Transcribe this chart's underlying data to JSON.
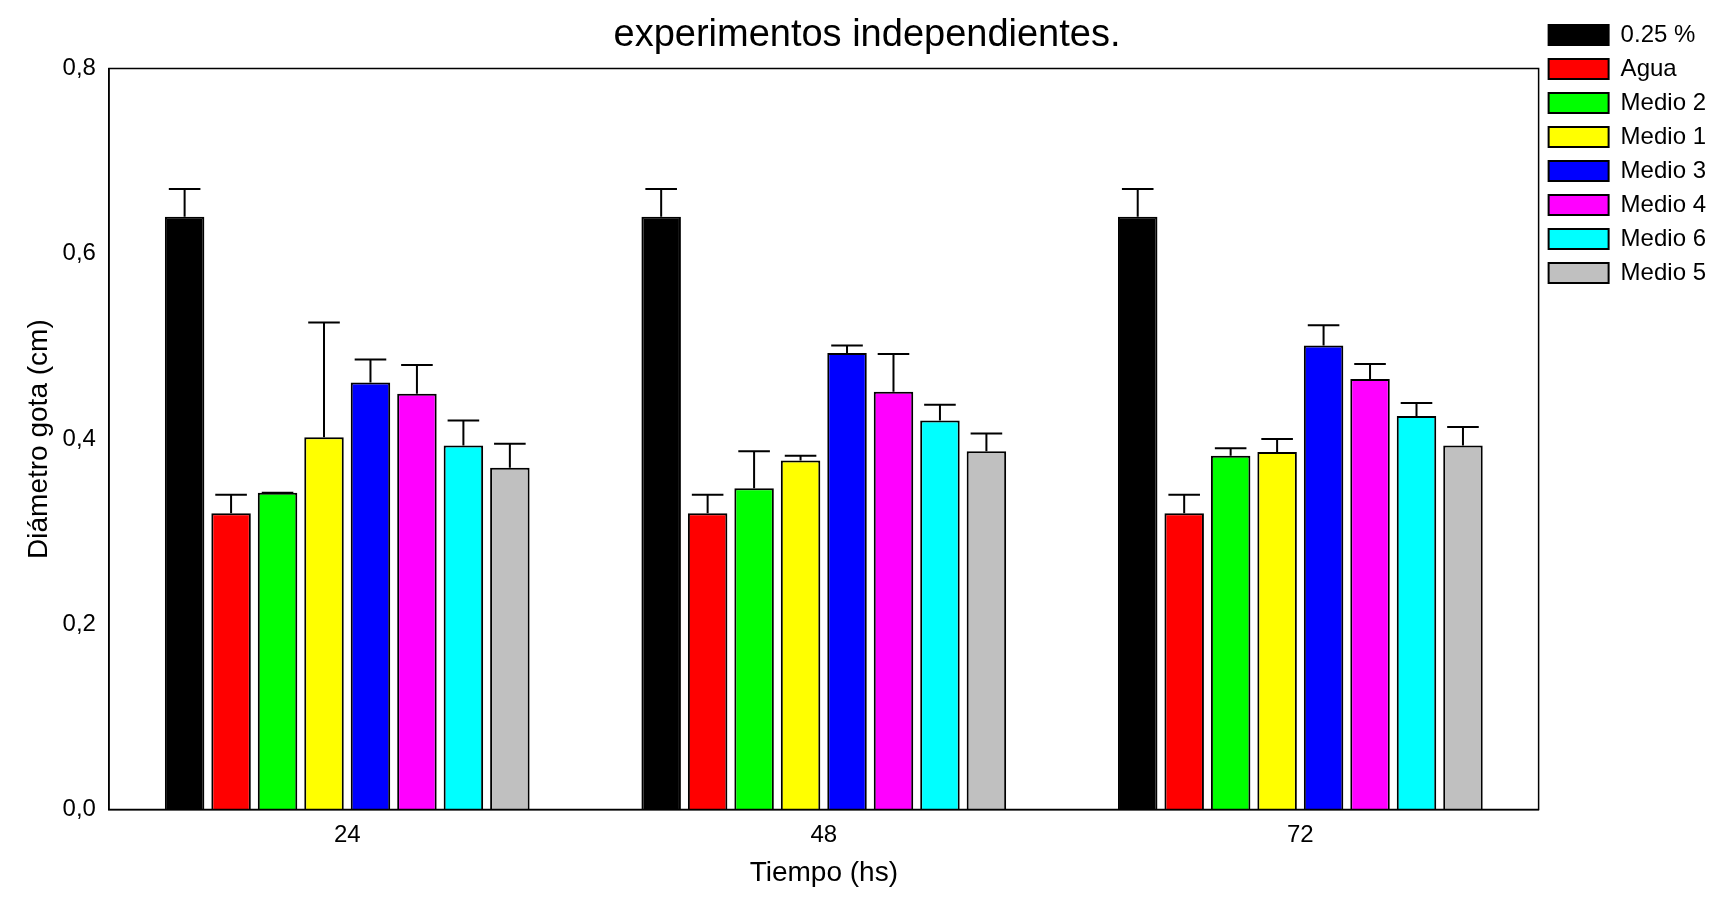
{
  "chart_data": {
    "type": "bar",
    "title": "experimentos independientes.",
    "xlabel": "Tiempo (hs)",
    "ylabel": "Diámetro gota (cm)",
    "categories": [
      "24",
      "48",
      "72"
    ],
    "series": [
      {
        "name": "0.25 %",
        "color": "#000000",
        "values": [
          0.64,
          0.64,
          0.64
        ],
        "errors": [
          [
            0.64,
            0.67
          ],
          [
            0.64,
            0.67
          ],
          [
            0.64,
            0.67
          ]
        ]
      },
      {
        "name": "Agua",
        "color": "#ff0000",
        "values": [
          0.32,
          0.32,
          0.32
        ],
        "errors": [
          [
            0.32,
            0.34
          ],
          [
            0.32,
            0.34
          ],
          [
            0.32,
            0.34
          ]
        ]
      },
      {
        "name": "Medio 2",
        "color": "#00ff00",
        "values": [
          0.342,
          0.347,
          0.382
        ],
        "errors": [
          [
            0.342,
            0.342
          ],
          [
            0.347,
            0.387
          ],
          [
            0.382,
            0.39
          ]
        ]
      },
      {
        "name": "Medio 1",
        "color": "#ffff00",
        "values": [
          0.402,
          0.377,
          0.386
        ],
        "errors": [
          [
            0.402,
            0.526
          ],
          [
            0.377,
            0.382
          ],
          [
            0.386,
            0.4
          ]
        ]
      },
      {
        "name": "Medio 3",
        "color": "#0000ff",
        "values": [
          0.461,
          0.493,
          0.501
        ],
        "errors": [
          [
            0.461,
            0.486
          ],
          [
            0.493,
            0.501
          ],
          [
            0.501,
            0.523
          ]
        ]
      },
      {
        "name": "Medio 4",
        "color": "#ff00ff",
        "values": [
          0.449,
          0.451,
          0.465
        ],
        "errors": [
          [
            0.449,
            0.48
          ],
          [
            0.451,
            0.492
          ],
          [
            0.465,
            0.481
          ]
        ]
      },
      {
        "name": "Medio 6",
        "color": "#00ffff",
        "values": [
          0.393,
          0.42,
          0.425
        ],
        "errors": [
          [
            0.393,
            0.42
          ],
          [
            0.42,
            0.437
          ],
          [
            0.425,
            0.439
          ]
        ]
      },
      {
        "name": "Medio 5",
        "color": "#c0c0c0",
        "values": [
          0.369,
          0.387,
          0.393
        ],
        "errors": [
          [
            0.369,
            0.395
          ],
          [
            0.387,
            0.406
          ],
          [
            0.393,
            0.413
          ]
        ]
      }
    ],
    "ylim": [
      0,
      0.8
    ],
    "yticks": [
      {
        "value": 0,
        "label": "0,0"
      },
      {
        "value": 0.2,
        "label": "0,2"
      },
      {
        "value": 0.4,
        "label": "0,4"
      },
      {
        "value": 0.6,
        "label": "0,6"
      },
      {
        "value": 0.8,
        "label": "0,8"
      }
    ],
    "legend": "top right"
  }
}
